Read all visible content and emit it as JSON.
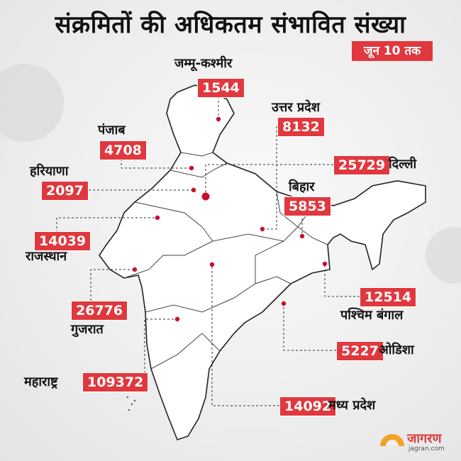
{
  "title": "संक्रमितों की अधिकतम संभावित संख्या",
  "date_badge": "जून 10 तक",
  "colors": {
    "accent": "#e0383e",
    "dot": "#c8102e",
    "logo_sun": "#f4a12a"
  },
  "states": [
    {
      "id": "jk",
      "name": "जम्मू-कश्मीर",
      "value": "1544"
    },
    {
      "id": "up",
      "name": "उत्तर प्रदेश",
      "value": "8132"
    },
    {
      "id": "pb",
      "name": "पंजाब",
      "value": "4708"
    },
    {
      "id": "dl",
      "name": "दिल्ली",
      "value": "25729"
    },
    {
      "id": "hr",
      "name": "हरियाणा",
      "value": "2097"
    },
    {
      "id": "br",
      "name": "बिहार",
      "value": "5853"
    },
    {
      "id": "rj",
      "name": "राजस्थान",
      "value": "14039"
    },
    {
      "id": "gj",
      "name": "गुजरात",
      "value": "26776"
    },
    {
      "id": "wb",
      "name": "पश्चिम बंगाल",
      "value": "12514"
    },
    {
      "id": "od",
      "name": "ओडिशा",
      "value": "5227"
    },
    {
      "id": "mh",
      "name": "महाराष्ट्र",
      "value": "109372"
    },
    {
      "id": "mp",
      "name": "मध्य प्रदेश",
      "value": "14092"
    }
  ],
  "logo": {
    "name": "जागरण",
    "url": "jagran.com"
  }
}
